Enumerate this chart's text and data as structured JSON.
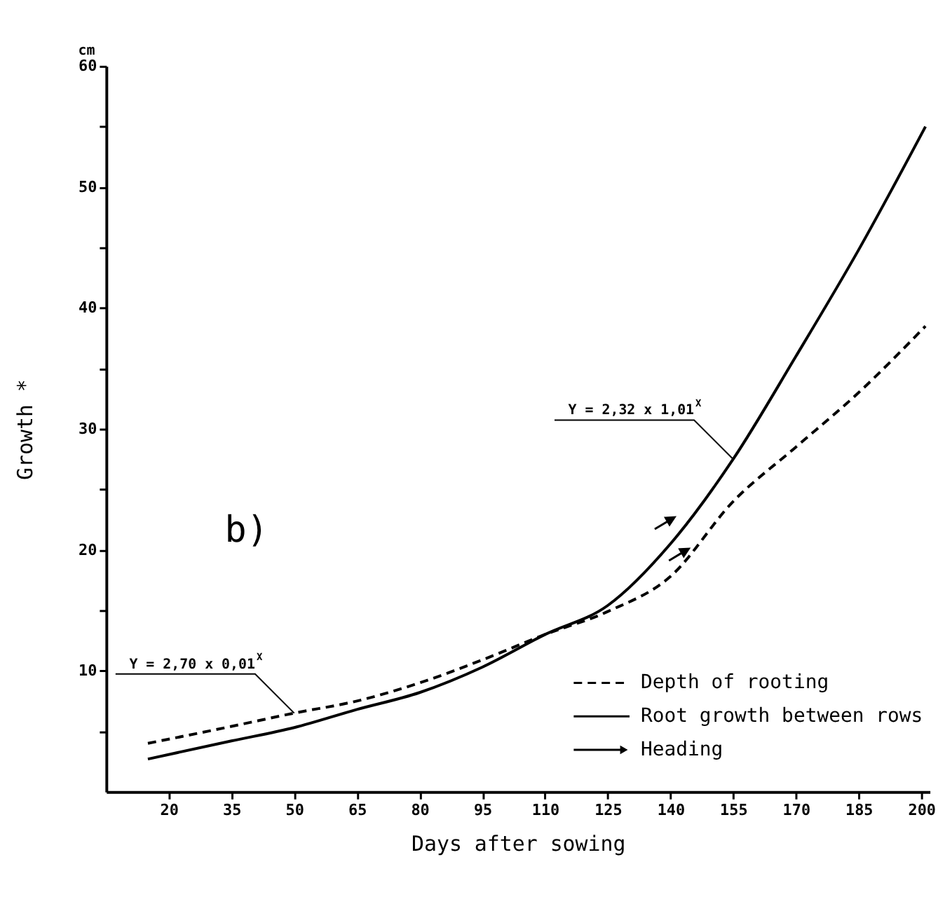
{
  "chart_data": {
    "type": "line",
    "xlabel": "Days after sowing",
    "ylabel": "Growth  *",
    "annotations": [
      "cm",
      "b)",
      {
        "text": "Y = 2,32 x 1,01$^{X}$",
        "x": 155,
        "y": 27.5
      },
      {
        "text": "Y = 2,70 x 0,01$^{X}$",
        "x": 50,
        "y": 6.5
      }
    ],
    "xlim": [
      5,
      202
    ],
    "ylim": [
      0,
      60
    ],
    "xticks": [
      20,
      35,
      50,
      65,
      80,
      95,
      110,
      125,
      140,
      155,
      170,
      185,
      200
    ],
    "yticks": [
      {
        "value": 5,
        "label": null
      },
      10,
      {
        "value": 15,
        "label": null
      },
      20,
      {
        "value": 25,
        "label": null
      },
      30,
      {
        "value": 35,
        "label": null
      },
      40,
      {
        "value": 45,
        "label": null
      },
      50,
      {
        "value": 55,
        "label": null
      },
      60
    ],
    "grid": false,
    "legend": "bottom right",
    "series": [
      {
        "name": "Depth of rooting",
        "color": "#000000",
        "line_style": "dashed",
        "x": [
          15,
          35,
          50,
          65,
          80,
          95,
          110,
          125,
          140,
          155,
          170,
          185,
          201
        ],
        "values": [
          4.0,
          5.4,
          6.5,
          7.5,
          9.0,
          10.9,
          13.0,
          14.9,
          17.8,
          24.0,
          28.5,
          33.0,
          38.5
        ]
      },
      {
        "name": "Root growth between rows",
        "color": "#000000",
        "line_style": "solid",
        "x": [
          15,
          35,
          50,
          65,
          80,
          95,
          110,
          125,
          140,
          155,
          170,
          185,
          201
        ],
        "values": [
          2.7,
          4.2,
          5.3,
          6.8,
          8.2,
          10.3,
          13.0,
          15.4,
          20.5,
          27.5,
          36.0,
          44.8,
          55.0
        ]
      },
      {
        "name": "Heading",
        "color": "#000000",
        "type": "scatter",
        "x": [
          138.6,
          142
        ],
        "values": [
          22.2,
          19.6
        ]
      }
    ]
  }
}
